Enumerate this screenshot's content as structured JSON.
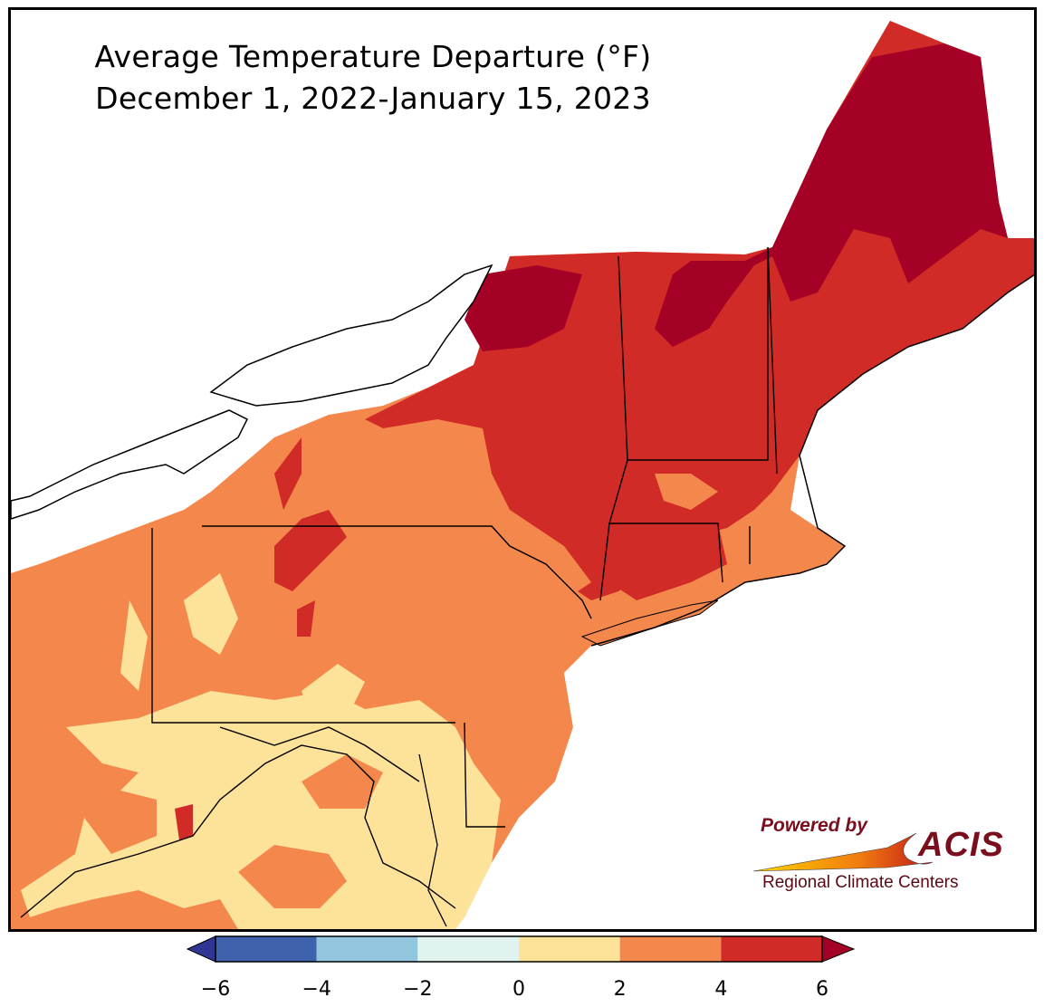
{
  "title": {
    "line1": "Average Temperature Departure (°F)",
    "line2": "December 1, 2022-January 15, 2023"
  },
  "logo": {
    "powered_by": "Powered by",
    "acis": "ACIS",
    "subtitle": "Regional Climate Centers"
  },
  "colorbar": {
    "ticks": [
      "−6",
      "−4",
      "−2",
      "0",
      "2",
      "4",
      "6"
    ],
    "bins": [
      {
        "from": -6,
        "to": -4,
        "color": "#3f62ad"
      },
      {
        "from": -4,
        "to": -2,
        "color": "#92c5de"
      },
      {
        "from": -2,
        "to": 0,
        "color": "#e0f3ee"
      },
      {
        "from": 0,
        "to": 2,
        "color": "#fde29a"
      },
      {
        "from": 2,
        "to": 4,
        "color": "#f4874b"
      },
      {
        "from": 4,
        "to": 6,
        "color": "#d12b27"
      }
    ],
    "under_color": "#313695",
    "over_color": "#a50026"
  },
  "legend_colors": {
    "departure_0_2": "#fde29a",
    "departure_2_4": "#f4874b",
    "departure_4_6": "#d12b27",
    "departure_over_6": "#a50026"
  }
}
